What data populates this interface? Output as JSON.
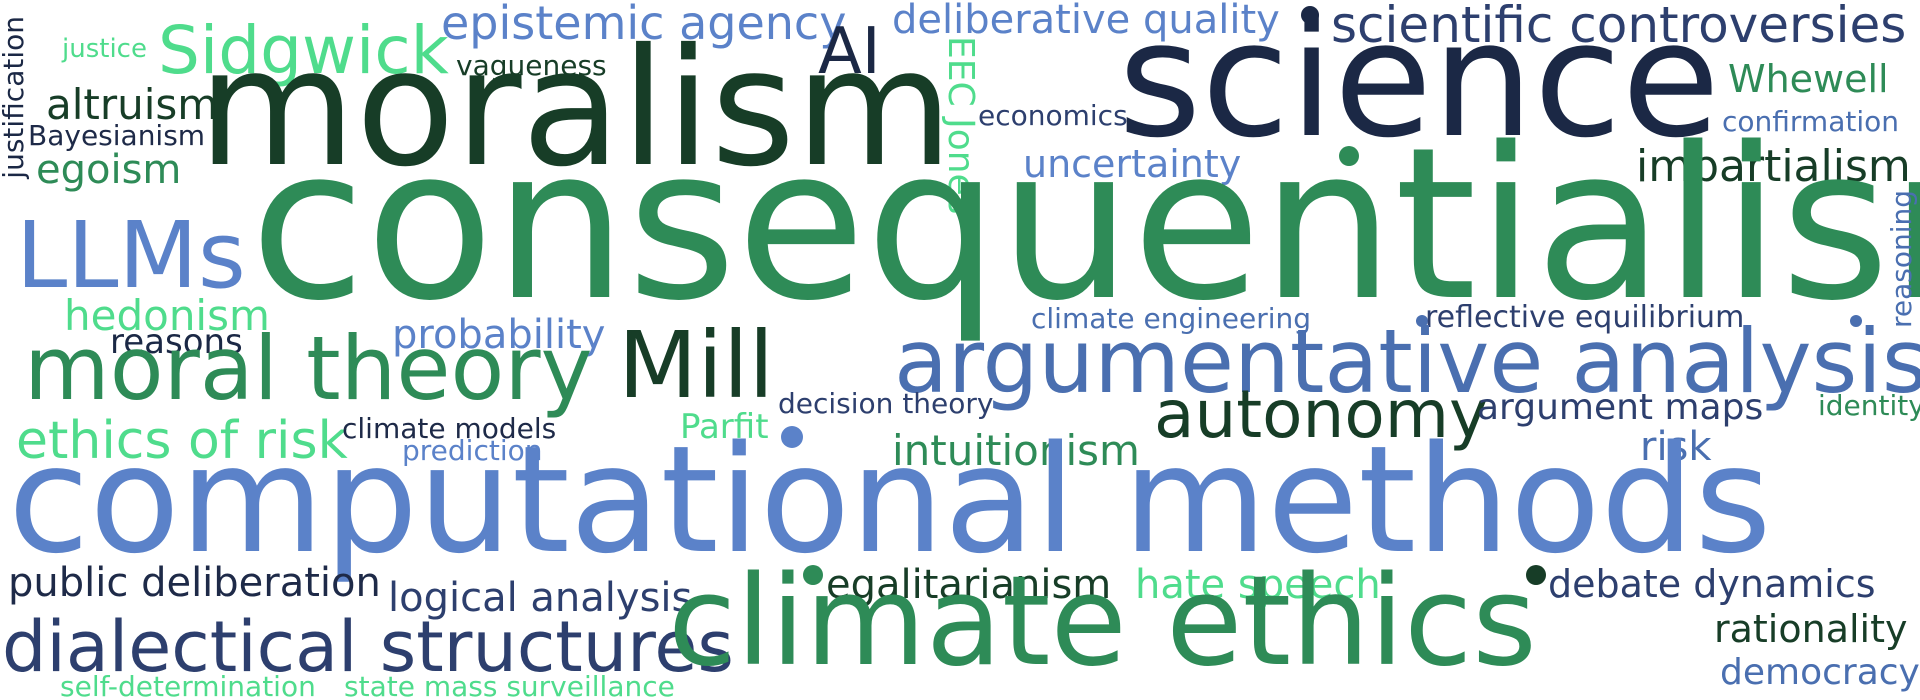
{
  "palette": {
    "navy": "#1b2845",
    "dark_navy": "#1e2a48",
    "blue": "#5b82c9",
    "mid_blue": "#4a6fb0",
    "dark_green": "#173d27",
    "green": "#2e8b57",
    "mint": "#4fdc8c"
  },
  "words": [
    {
      "text": "justification",
      "color": "#1b2845"
    },
    {
      "text": "justice",
      "color": "#4fdc8c"
    },
    {
      "text": "Sidgwick",
      "color": "#4fdc8c"
    },
    {
      "text": "epistemic agency",
      "color": "#5b82c9"
    },
    {
      "text": "AI",
      "color": "#1b2845"
    },
    {
      "text": "deliberative quality",
      "color": "#5b82c9"
    },
    {
      "text": "scientific controversies",
      "color": "#2d3f6e"
    },
    {
      "text": "vagueness",
      "color": "#173d27"
    },
    {
      "text": "moralism",
      "color": "#173d27"
    },
    {
      "text": "science",
      "color": "#1b2845"
    },
    {
      "text": "altruism",
      "color": "#173d27"
    },
    {
      "text": "Bayesianism",
      "color": "#1e2a48"
    },
    {
      "text": "egoism",
      "color": "#2e8b57"
    },
    {
      "text": "EEC Jones",
      "color": "#4fdc8c"
    },
    {
      "text": "economics",
      "color": "#2d3f6e"
    },
    {
      "text": "Whewell",
      "color": "#2e8b57"
    },
    {
      "text": "confirmation",
      "color": "#4a6fb0"
    },
    {
      "text": "uncertainty",
      "color": "#5b82c9"
    },
    {
      "text": "impartialism",
      "color": "#173d27"
    },
    {
      "text": "LLMs",
      "color": "#5b82c9"
    },
    {
      "text": "consequentialism",
      "color": "#2e8b57"
    },
    {
      "text": "reasoning",
      "color": "#4a6fb0"
    },
    {
      "text": "hedonism",
      "color": "#4fdc8c"
    },
    {
      "text": "reasons",
      "color": "#1b2845"
    },
    {
      "text": "probability",
      "color": "#5b82c9"
    },
    {
      "text": "climate engineering",
      "color": "#4a6fb0"
    },
    {
      "text": "reflective equilibrium",
      "color": "#2d3f6e"
    },
    {
      "text": "moral theory",
      "color": "#2e8b57"
    },
    {
      "text": "Mill",
      "color": "#173d27"
    },
    {
      "text": "argumentative analysis",
      "color": "#4a6fb0"
    },
    {
      "text": "decision theory",
      "color": "#2d3f6e"
    },
    {
      "text": "autonomy",
      "color": "#173d27"
    },
    {
      "text": "argument maps",
      "color": "#2d3f6e"
    },
    {
      "text": "identity",
      "color": "#2e8b57"
    },
    {
      "text": "ethics of risk",
      "color": "#4fdc8c"
    },
    {
      "text": "climate models",
      "color": "#1e2a48"
    },
    {
      "text": "Parfit",
      "color": "#4fdc8c"
    },
    {
      "text": "prediction",
      "color": "#5b82c9"
    },
    {
      "text": "intuitionism",
      "color": "#2e8b57"
    },
    {
      "text": "risk",
      "color": "#4a6fb0"
    },
    {
      "text": "computational methods",
      "color": "#5b82c9"
    },
    {
      "text": "public deliberation",
      "color": "#1e2a48"
    },
    {
      "text": "logical analysis",
      "color": "#2d3f6e"
    },
    {
      "text": "egalitarianism",
      "color": "#173d27"
    },
    {
      "text": "hate speech",
      "color": "#4fdc8c"
    },
    {
      "text": "debate dynamics",
      "color": "#2d3f6e"
    },
    {
      "text": "dialectical structures",
      "color": "#2d3f6e"
    },
    {
      "text": "climate ethics",
      "color": "#2e8b57"
    },
    {
      "text": "rationality",
      "color": "#173d27"
    },
    {
      "text": "democracy",
      "color": "#4a6fb0"
    },
    {
      "text": "self-determination",
      "color": "#4fdc8c"
    },
    {
      "text": "state mass surveillance",
      "color": "#4fdc8c"
    }
  ]
}
